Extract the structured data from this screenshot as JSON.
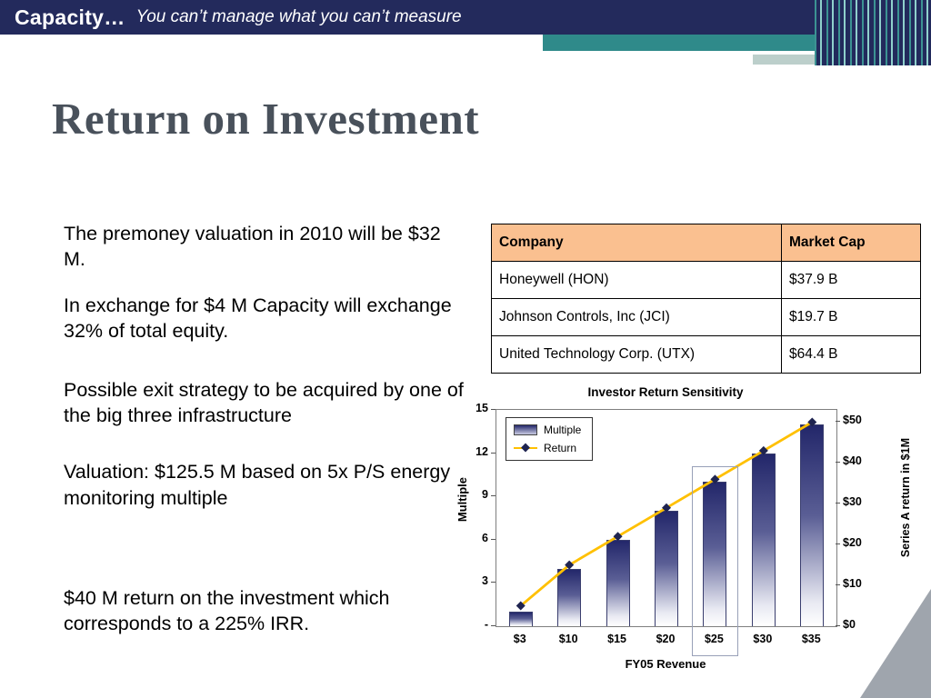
{
  "header": {
    "title": "Capacity…",
    "subtitle": "You can’t manage what you can’t measure"
  },
  "slide": {
    "title": "Return on Investment"
  },
  "paragraphs": [
    "The premoney valuation in 2010 will be $32 M.",
    "In exchange for $4 M Capacity will exchange 32% of total equity.",
    "Possible exit strategy to be acquired by one of the big three infrastructure",
    "Valuation: $125.5 M based on 5x P/S energy monitoring multiple",
    "$40 M return on the investment which corresponds to a 225% IRR."
  ],
  "table": {
    "headers": [
      "Company",
      "Market Cap"
    ],
    "rows": [
      [
        "Honeywell (HON)",
        "$37.9 B"
      ],
      [
        "Johnson Controls, Inc (JCI)",
        "$19.7 B"
      ],
      [
        "United Technology Corp. (UTX)",
        "$64.4 B"
      ]
    ]
  },
  "chart_data": {
    "type": "combo",
    "title": "Investor Return Sensitivity",
    "xlabel": "FY05 Revenue",
    "ylabel_left": "Multiple",
    "ylabel_right": "Series A return in $1M",
    "categories": [
      "$3",
      "$10",
      "$15",
      "$20",
      "$25",
      "$30",
      "$35"
    ],
    "series": [
      {
        "name": "Multiple",
        "type": "bar",
        "axis": "left",
        "values": [
          1,
          4,
          6,
          8,
          10,
          12,
          14
        ]
      },
      {
        "name": "Return",
        "type": "line",
        "axis": "right",
        "values": [
          5,
          15,
          22,
          29,
          36,
          43,
          50
        ]
      }
    ],
    "ylim_left": [
      0,
      15
    ],
    "ylim_right": [
      0,
      53
    ],
    "left_ticks": [
      {
        "v": 15,
        "label": "15"
      },
      {
        "v": 12,
        "label": "12"
      },
      {
        "v": 9,
        "label": "9"
      },
      {
        "v": 6,
        "label": "6"
      },
      {
        "v": 3,
        "label": "3"
      },
      {
        "v": 0,
        "label": "-"
      }
    ],
    "right_ticks": [
      {
        "v": 50,
        "label": "$50"
      },
      {
        "v": 40,
        "label": "$40"
      },
      {
        "v": 30,
        "label": "$30"
      },
      {
        "v": 20,
        "label": "$20"
      },
      {
        "v": 10,
        "label": "$10"
      },
      {
        "v": 0,
        "label": "$0"
      }
    ],
    "highlight_category": "$25",
    "legend_position": "top-left",
    "colors": {
      "bar_top": "#23276A",
      "line": "#FFC000",
      "marker": "#1F2450"
    }
  },
  "colors": {
    "header_bg": "#232A5C",
    "teal_accent": "#2F8A8A",
    "table_header_bg": "#FAC090",
    "title_text": "#49515B"
  }
}
